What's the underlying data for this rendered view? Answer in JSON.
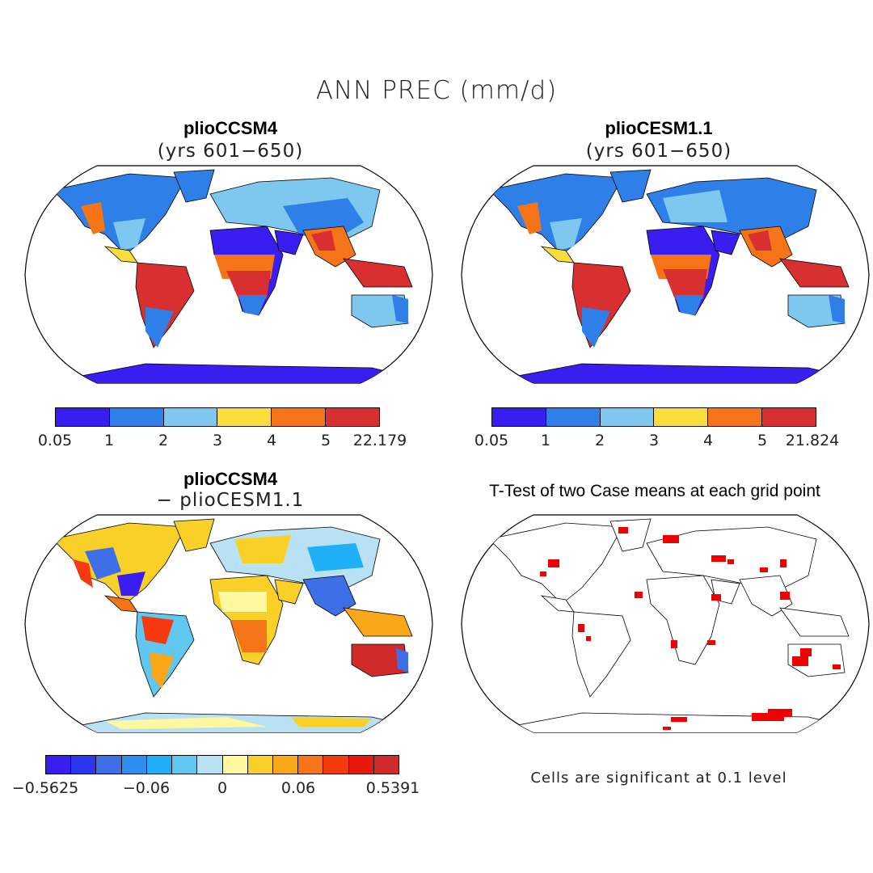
{
  "figure": {
    "title": "ANN PREC (mm/d)"
  },
  "panels": [
    {
      "id": "top-left",
      "title": "plioCCSM4",
      "subtitle": "(yrs 601−650)",
      "colorbar": {
        "colors": [
          "#3a1ef0",
          "#2f7fe8",
          "#7ec8f0",
          "#f8de3c",
          "#f57418",
          "#d83030"
        ],
        "tick_labels": [
          "0.05",
          "1",
          "2",
          "3",
          "4",
          "5",
          "22.179"
        ]
      }
    },
    {
      "id": "top-right",
      "title": "plioCESM1.1",
      "subtitle": "(yrs 601−650)",
      "colorbar": {
        "colors": [
          "#3a1ef0",
          "#2f7fe8",
          "#7ec8f0",
          "#f8de3c",
          "#f57418",
          "#d83030"
        ],
        "tick_labels": [
          "0.05",
          "1",
          "2",
          "3",
          "4",
          "5",
          "21.824"
        ]
      }
    },
    {
      "id": "bottom-left",
      "title": "plioCCSM4",
      "subtitle": "− plioCESM1.1",
      "colorbar": {
        "colors": [
          "#3a1ef0",
          "#2c35f0",
          "#3f6fe6",
          "#2f8ff0",
          "#1fb0f8",
          "#60c8f0",
          "#b8e2f4",
          "#fff8a0",
          "#f8d028",
          "#f8a818",
          "#f57418",
          "#f53a10",
          "#e81a10",
          "#d02a2a"
        ],
        "tick_labels": [
          "−0.5625",
          "−0.06",
          "0",
          "0.06",
          "0.5391"
        ]
      }
    },
    {
      "id": "bottom-right",
      "title": "T-Test of two Case means at each grid point",
      "note": "Cells are significant at 0.1 level"
    }
  ]
}
